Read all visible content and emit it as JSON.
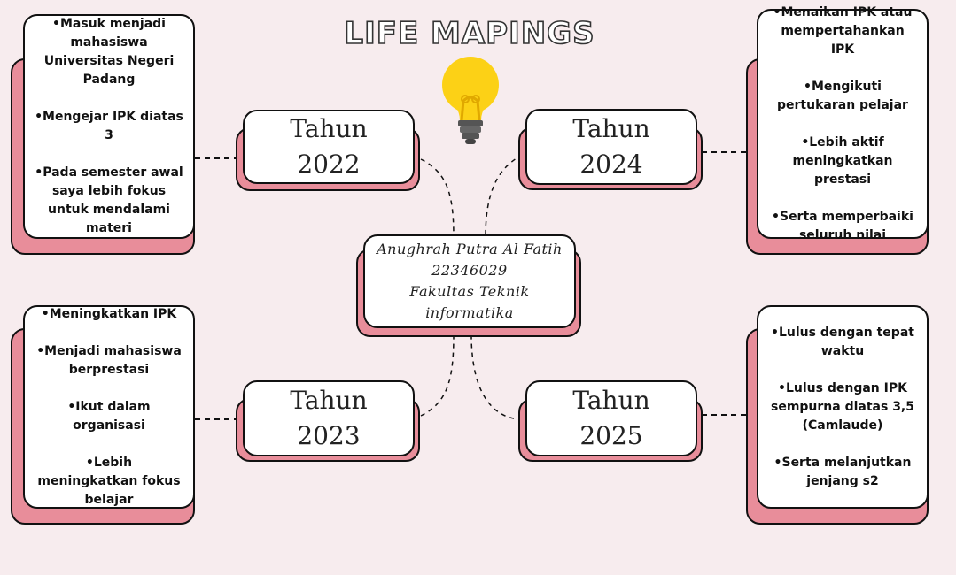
{
  "title": "LIFE MAPINGS",
  "center": {
    "lines": [
      "Anughrah Putra Al Fatih",
      "22346029",
      "Fakultas Teknik",
      "informatika"
    ]
  },
  "years": {
    "y2022": {
      "word": "Tahun",
      "year": "2022"
    },
    "y2023": {
      "word": "Tahun",
      "year": "2023"
    },
    "y2024": {
      "word": "Tahun",
      "year": "2024"
    },
    "y2025": {
      "word": "Tahun",
      "year": "2025"
    }
  },
  "notes": {
    "n2022": [
      "•Masuk menjadi mahasiswa Universitas Negeri Padang",
      "•Mengejar IPK diatas 3",
      "•Pada semester awal saya lebih fokus untuk mendalami materi"
    ],
    "n2023": [
      "•Meningkatkan IPK",
      "•Menjadi mahasiswa berprestasi",
      "•Ikut dalam organisasi",
      "•Lebih meningkatkan fokus belajar"
    ],
    "n2024": [
      "•Menaikan IPK atau mempertahankan IPK",
      "•Mengikuti pertukaran pelajar",
      "•Lebih aktif meningkatkan prestasi",
      "•Serta memperbaiki seluruh nilai"
    ],
    "n2025": [
      "•Lulus dengan tepat waktu",
      "•Lulus dengan IPK sempurna diatas 3,5 (Camlaude)",
      "•Serta melanjutkan jenjang s2"
    ]
  },
  "colors": {
    "background": "#f7ecee",
    "shadow_pink": "#e88d9a",
    "bulb_yellow": "#fcd116",
    "bulb_base": "#555555"
  },
  "icons": {
    "center": "light-bulb-icon"
  }
}
